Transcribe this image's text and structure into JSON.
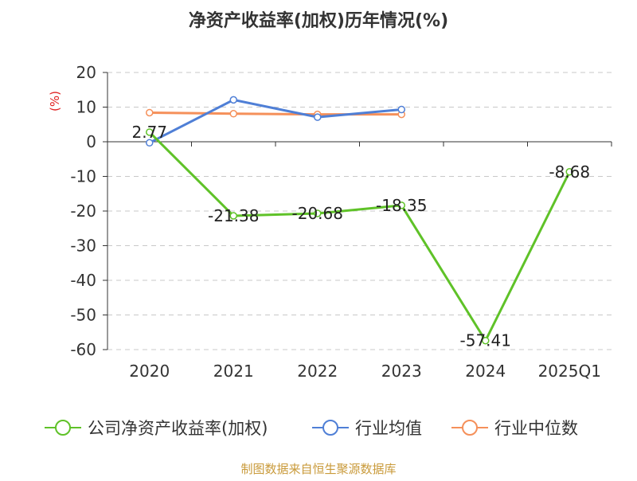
{
  "chart_data": {
    "type": "line",
    "title": "净资产收益率(加权)历年情况(%)",
    "ylabel": "(%)",
    "categories": [
      "2020",
      "2021",
      "2022",
      "2023",
      "2024",
      "2025Q1"
    ],
    "ylim": [
      -60,
      20
    ],
    "yticks": [
      20,
      10,
      0,
      -10,
      -20,
      -30,
      -40,
      -50,
      -60
    ],
    "grid": true,
    "legend_position": "bottom",
    "series": [
      {
        "name": "公司净资产收益率(加权)",
        "values": [
          2.77,
          -21.38,
          -20.68,
          -18.35,
          -57.41,
          -8.68
        ],
        "labels": [
          "2.77",
          "-21.38",
          "-20.68",
          "-18.35",
          "-57.41",
          "-8.68"
        ],
        "color": "#5fc228"
      },
      {
        "name": "行业均值",
        "values": [
          -0.3,
          12.1,
          7.1,
          9.3,
          null,
          null
        ],
        "color": "#4f7fd6"
      },
      {
        "name": "行业中位数",
        "values": [
          8.4,
          8.1,
          7.9,
          7.9,
          null,
          null
        ],
        "color": "#f5905a"
      }
    ],
    "source": "制图数据来自恒生聚源数据库",
    "colors": {
      "title": "#333333",
      "axis": "#333333",
      "grid": "#c8c8c8",
      "ylabel": "#e02020",
      "source": "#c99a3a"
    }
  }
}
